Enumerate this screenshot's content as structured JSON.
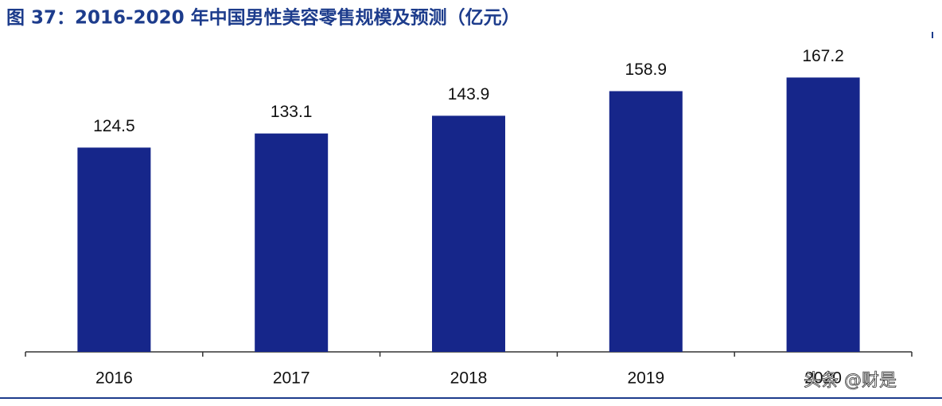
{
  "chart_data": {
    "type": "bar",
    "title": "图 37：2016-2020 年中国男性美容零售规模及预测（亿元）",
    "categories": [
      "2016",
      "2017",
      "2018",
      "2019",
      "2020"
    ],
    "values": [
      124.5,
      133.1,
      143.9,
      158.9,
      167.2
    ],
    "color": "#16268a",
    "ylim": [
      0,
      180
    ],
    "annotation": "头条 @财是"
  }
}
